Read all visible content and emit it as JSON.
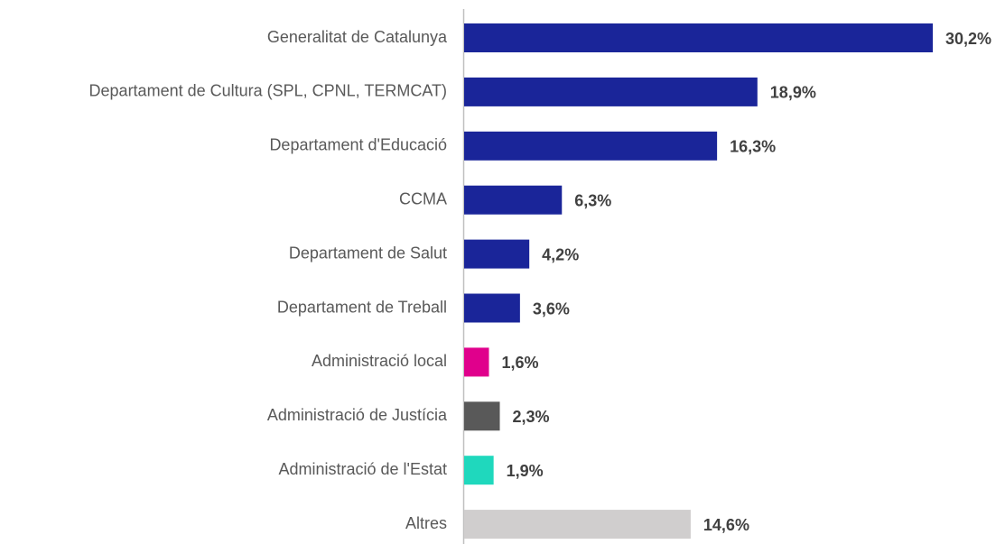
{
  "chart_data": {
    "type": "barh",
    "categories": [
      "Generalitat de Catalunya",
      "Departament de Cultura (SPL, CPNL, TERMCAT)",
      "Departament d'Educació",
      "CCMA",
      "Departament de Salut",
      "Departament de Treball",
      "Administració local",
      "Administració de Justícia",
      "Administració de l'Estat",
      "Altres"
    ],
    "values": [
      30.2,
      18.9,
      16.3,
      6.3,
      4.2,
      3.6,
      1.6,
      2.3,
      1.9,
      14.6
    ],
    "value_labels": [
      "30,2%",
      "18,9%",
      "16,3%",
      "6,3%",
      "4,2%",
      "3,6%",
      "1,6%",
      "2,3%",
      "1,9%",
      "14,6%"
    ],
    "colors": [
      "#1a2599",
      "#1a2599",
      "#1a2599",
      "#1a2599",
      "#1a2599",
      "#1a2599",
      "#e0008c",
      "#595959",
      "#1fd8bd",
      "#d0cece"
    ]
  }
}
